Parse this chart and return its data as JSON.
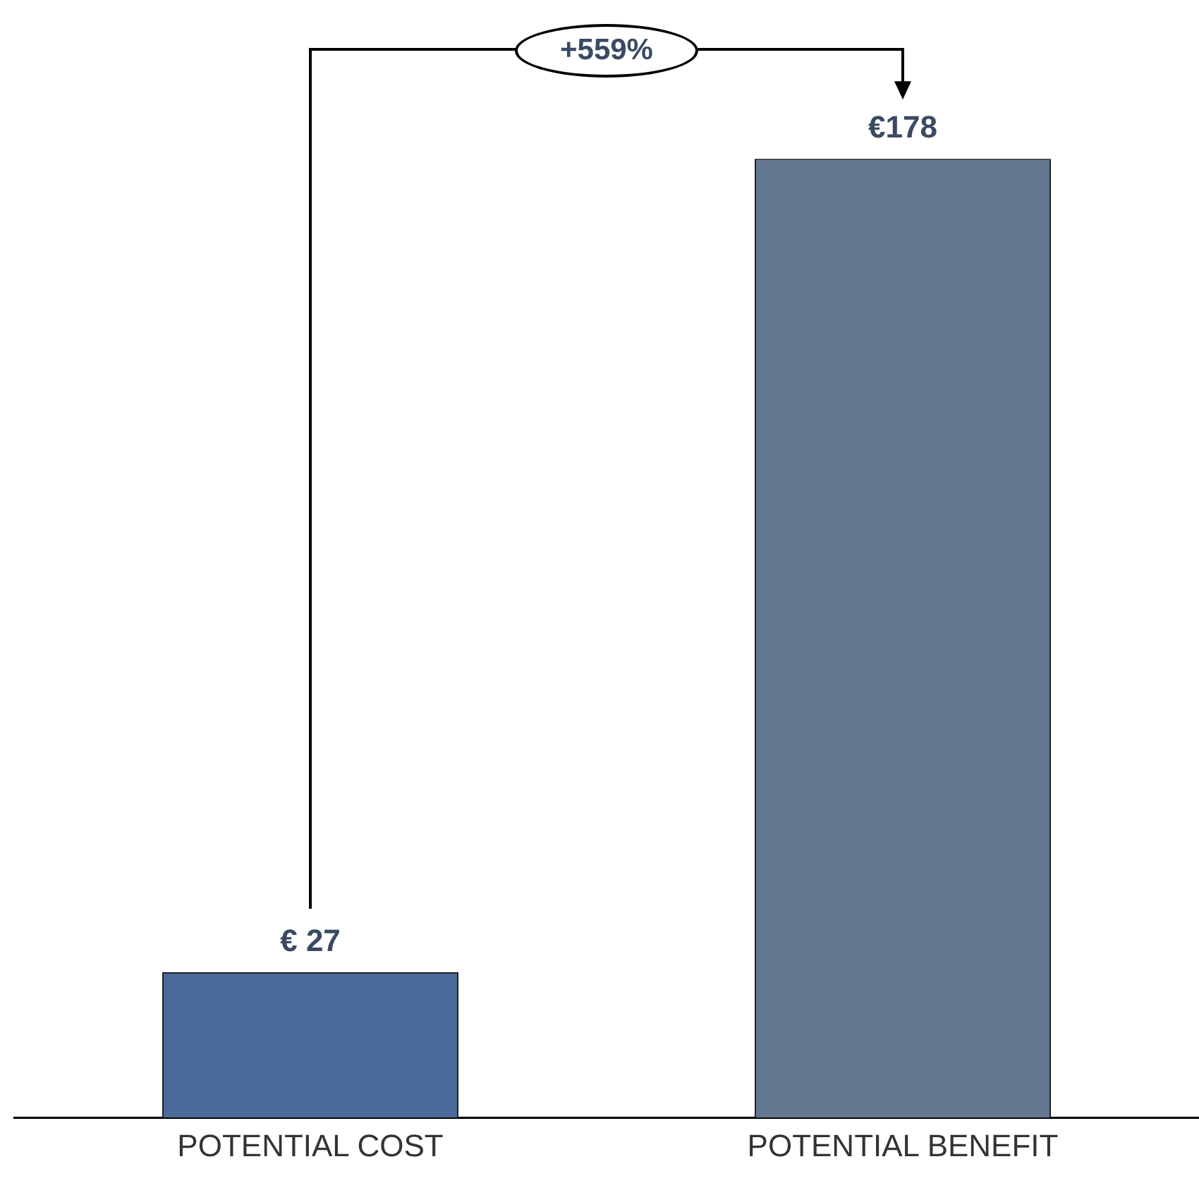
{
  "chart_data": {
    "type": "bar",
    "categories": [
      "POTENTIAL COST",
      "POTENTIAL BENEFIT"
    ],
    "values": [
      27,
      178
    ],
    "colors": [
      "#4a6a9a",
      "#647790"
    ],
    "value_labels": [
      "€ 27",
      "€178"
    ],
    "tick_labels": "x",
    "grid": false,
    "legend": false,
    "annotations": [
      "+559%"
    ]
  }
}
